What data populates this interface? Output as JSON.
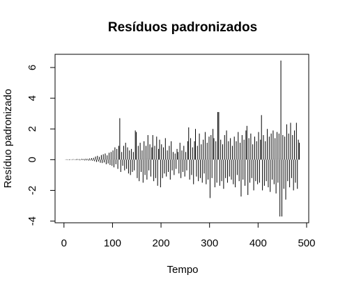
{
  "chart_data": {
    "type": "spike",
    "title": "Resíduos padronizados",
    "x_label": "Tempo",
    "y_label": "Resíduo padronizado",
    "color": "#000000",
    "xlim": [
      -18.36,
      504.36
    ],
    "ylim": [
      -4.11,
      6.86
    ],
    "xticks": [
      0,
      100,
      200,
      300,
      400,
      500
    ],
    "yticks": [
      -4,
      -2,
      0,
      2,
      4,
      6
    ],
    "x": [
      1,
      3,
      5,
      7,
      9,
      11,
      13,
      15,
      17,
      19,
      21,
      23,
      25,
      27,
      29,
      31,
      33,
      35,
      37,
      39,
      41,
      43,
      45,
      47,
      49,
      51,
      53,
      55,
      57,
      59,
      61,
      63,
      65,
      67,
      69,
      71,
      73,
      75,
      77,
      79,
      81,
      83,
      85,
      87,
      89,
      91,
      93,
      95,
      97,
      99,
      101,
      103,
      105,
      107,
      109,
      111,
      113,
      115,
      117,
      119,
      121,
      123,
      125,
      127,
      129,
      131,
      133,
      135,
      137,
      139,
      141,
      143,
      145,
      147,
      149,
      151,
      153,
      155,
      157,
      159,
      161,
      163,
      165,
      167,
      169,
      171,
      173,
      175,
      177,
      179,
      181,
      183,
      185,
      187,
      189,
      191,
      193,
      195,
      197,
      199,
      201,
      203,
      205,
      207,
      209,
      211,
      213,
      215,
      217,
      219,
      221,
      223,
      225,
      227,
      229,
      231,
      233,
      235,
      237,
      239,
      241,
      243,
      245,
      247,
      249,
      251,
      253,
      255,
      257,
      259,
      261,
      263,
      265,
      267,
      269,
      271,
      273,
      275,
      277,
      279,
      281,
      283,
      285,
      287,
      289,
      291,
      293,
      295,
      297,
      299,
      301,
      303,
      305,
      307,
      309,
      311,
      313,
      315,
      317,
      319,
      321,
      323,
      325,
      327,
      329,
      331,
      333,
      335,
      337,
      339,
      341,
      343,
      345,
      347,
      349,
      351,
      353,
      355,
      357,
      359,
      361,
      363,
      365,
      367,
      369,
      371,
      373,
      375,
      377,
      379,
      381,
      383,
      385,
      387,
      389,
      391,
      393,
      395,
      397,
      399,
      401,
      403,
      405,
      407,
      409,
      411,
      413,
      415,
      417,
      419,
      421,
      423,
      425,
      427,
      429,
      431,
      433,
      435,
      437,
      439,
      441,
      443,
      445,
      447,
      449,
      451,
      453,
      455,
      457,
      459,
      461,
      463,
      465,
      467,
      469,
      471,
      473,
      475,
      477,
      479,
      481,
      483,
      485
    ],
    "values": [
      0,
      -0.01,
      0.02,
      -0.02,
      0.01,
      -0.03,
      0.02,
      0.01,
      -0.02,
      0.03,
      -0.01,
      0.02,
      -0.03,
      0.04,
      -0.02,
      0.03,
      -0.04,
      0.02,
      0.05,
      -0.03,
      0.04,
      -0.05,
      0.06,
      -0.04,
      0.05,
      -0.06,
      0.08,
      -0.05,
      0.1,
      -0.07,
      0.12,
      -0.1,
      0.2,
      -0.15,
      0.25,
      -0.12,
      0.18,
      -0.2,
      0.3,
      -0.22,
      0.35,
      -0.18,
      0.4,
      -0.3,
      0.28,
      -0.25,
      0.45,
      -0.35,
      0.5,
      -0.4,
      0.6,
      -0.5,
      0.8,
      -0.3,
      0.7,
      -0.6,
      0.9,
      2.7,
      -0.8,
      0.5,
      -0.4,
      0.9,
      -0.7,
      1.1,
      -0.6,
      0.8,
      -0.9,
      0.6,
      -1.0,
      0.7,
      -0.8,
      0.5,
      -0.7,
      1.9,
      1.8,
      -1.2,
      0.9,
      -1.4,
      1.1,
      -0.8,
      0.6,
      -1.5,
      1.2,
      -1.0,
      0.9,
      -1.3,
      1.6,
      -0.7,
      1.0,
      -1.1,
      0.8,
      1.6,
      -1.4,
      0.9,
      -1.2,
      1.5,
      -1.7,
      0.7,
      1.3,
      -1.8,
      1.0,
      -1.2,
      0.8,
      -0.9,
      1.4,
      -1.1,
      0.6,
      -0.8,
      0.9,
      -1.3,
      1.2,
      -0.7,
      0.5,
      -1.0,
      0.4,
      -0.6,
      0.7,
      0.5,
      -0.9,
      1.1,
      -1.2,
      0.6,
      -0.8,
      0.9,
      -1.1,
      0.5,
      -0.7,
      1.2,
      2.1,
      -1.3,
      1.4,
      -1.0,
      0.8,
      -1.6,
      1.2,
      2.0,
      -1.1,
      0.9,
      -1.4,
      1.7,
      -1.2,
      1.0,
      -1.5,
      1.3,
      -0.9,
      1.8,
      -1.6,
      1.1,
      -1.3,
      1.5,
      -2.5,
      1.6,
      -1.2,
      2.0,
      1.4,
      -1.8,
      1.2,
      -1.5,
      3.1,
      3.1,
      -1.7,
      1.3,
      -1.4,
      1.0,
      -1.9,
      1.6,
      -1.2,
      1.9,
      -1.5,
      1.2,
      -1.1,
      1.4,
      -1.3,
      0.9,
      -1.6,
      1.5,
      -1.8,
      1.2,
      -1.0,
      1.8,
      -1.4,
      1.1,
      -2.4,
      1.6,
      -1.3,
      1.3,
      -1.7,
      1.9,
      2.2,
      -2.3,
      1.4,
      -1.5,
      1.7,
      -1.2,
      1.0,
      -2.0,
      1.5,
      -1.4,
      1.2,
      -1.6,
      1.8,
      -1.5,
      1.3,
      2.9,
      -2.0,
      1.6,
      -1.7,
      1.2,
      -1.4,
      2.0,
      -1.8,
      1.5,
      -2.1,
      1.7,
      -1.3,
      1.9,
      -1.6,
      1.4,
      -2.2,
      1.8,
      -1.5,
      1.7,
      -3.7,
      6.45,
      -3.7,
      1.6,
      -1.9,
      1.5,
      -2.6,
      2.3,
      -1.4,
      1.7,
      -1.8,
      2.4,
      -1.2,
      1.6,
      -2.0,
      1.9,
      -1.5,
      2.4,
      -1.9,
      1.3,
      1.1
    ]
  }
}
